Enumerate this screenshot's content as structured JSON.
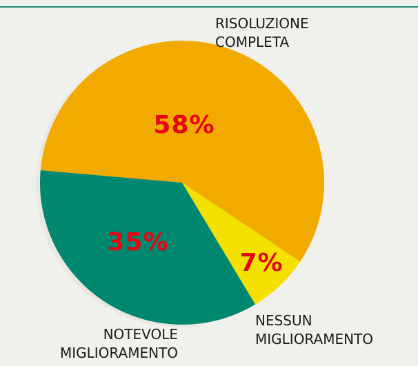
{
  "chart_data": {
    "type": "pie",
    "categories": [
      "RISOLUZIONE COMPLETA",
      "NESSUN MIGLIORAMENTO",
      "NOTEVOLE MIGLIORAMENTO"
    ],
    "values": [
      58,
      7,
      35
    ],
    "value_labels": [
      "58%",
      "7%",
      "35%"
    ],
    "colors": [
      "#f2a900",
      "#f5e100",
      "#008770"
    ]
  }
}
